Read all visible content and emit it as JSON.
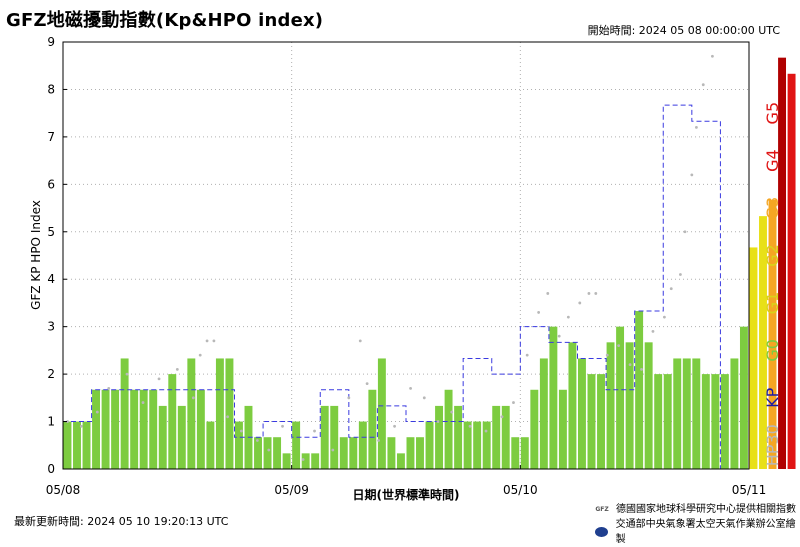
{
  "title": "GFZ地磁擾動指數(Kp&HPO index)",
  "start_time": "開始時間:  2024 05 08 00:00:00 UTC",
  "last_updated": "最新更新時間:  2024 05 10 19:20:13 UTC",
  "credits": {
    "gfz_logo_text": "GFZ",
    "line1": "德國國家地球科學研究中心提供相關指數",
    "line2": "交通部中央氣象署太空天氣作業辦公室繪製"
  },
  "colors": {
    "G0": "#7dcc40",
    "G1": "#e8e017",
    "G2": "#e8e017",
    "G3": "#f5a623",
    "G4": "#e01414",
    "G5": "#b00000",
    "kp_line": "#3a3ae0",
    "hp30": "#b8b8b8"
  },
  "chart_data": {
    "type": "bar",
    "title": "GFZ地磁擾動指數(Kp&HPO index)",
    "xlabel": "日期(世界標準時間)",
    "ylabel": "GFZ KP HPO Index",
    "ylim": [
      0,
      9
    ],
    "yticks": [
      "0",
      "1",
      "2",
      "3",
      "4",
      "5",
      "6",
      "7",
      "8",
      "9"
    ],
    "xlim_days": [
      0,
      3
    ],
    "xticks": [
      "05/08",
      "05/09",
      "05/10",
      "05/11"
    ],
    "grid": true,
    "right_axis_labels": [
      {
        "text": "HP30",
        "color": "#b8b8b8"
      },
      {
        "text": "KP",
        "color": "#1a1aa8"
      },
      {
        "text": "G0",
        "color": "#7dcc40"
      },
      {
        "text": "G1",
        "color": "#d9d21a"
      },
      {
        "text": "G2",
        "color": "#d9d21a"
      },
      {
        "text": "G3",
        "color": "#f5a623"
      },
      {
        "text": "G4",
        "color": "#e01414"
      },
      {
        "text": "G5",
        "color": "#e01414"
      }
    ],
    "hpo_hourly": [
      1.0,
      1.0,
      1.0,
      1.67,
      1.67,
      1.67,
      2.33,
      1.67,
      1.67,
      1.67,
      1.33,
      2.0,
      1.33,
      2.33,
      1.67,
      1.0,
      2.33,
      2.33,
      1.0,
      1.33,
      0.67,
      0.67,
      0.67,
      0.33,
      1.0,
      0.33,
      0.33,
      1.33,
      1.33,
      0.67,
      0.67,
      1.0,
      1.67,
      2.33,
      0.67,
      0.33,
      0.67,
      0.67,
      1.0,
      1.33,
      1.67,
      1.33,
      1.0,
      1.0,
      1.0,
      1.33,
      1.33,
      0.67,
      0.67,
      1.67,
      2.33,
      3.0,
      1.67,
      2.67,
      2.33,
      2.0,
      2.0,
      2.67,
      3.0,
      2.67,
      3.33,
      2.67,
      2.0,
      2.0,
      2.33,
      2.33,
      2.33,
      2.0,
      2.0,
      2.0,
      2.33,
      3.0,
      4.67,
      5.33,
      5.67,
      8.67,
      8.33
    ],
    "kp_3h": [
      1.0,
      1.67,
      1.67,
      1.67,
      1.67,
      1.67,
      0.67,
      1.0,
      0.67,
      1.67,
      0.67,
      1.33,
      1.0,
      1.0,
      2.33,
      2.0,
      3.0,
      2.67,
      2.33,
      1.67,
      3.33,
      7.67,
      7.33
    ],
    "hp30_points": [
      [
        0.02,
        1.0
      ],
      [
        0.08,
        0.9
      ],
      [
        0.15,
        1.2
      ],
      [
        0.2,
        1.7
      ],
      [
        0.28,
        2.0
      ],
      [
        0.35,
        1.4
      ],
      [
        0.42,
        1.9
      ],
      [
        0.5,
        2.1
      ],
      [
        0.57,
        1.5
      ],
      [
        0.6,
        2.4
      ],
      [
        0.63,
        2.7
      ],
      [
        0.66,
        2.7
      ],
      [
        0.72,
        1.1
      ],
      [
        0.78,
        0.8
      ],
      [
        0.85,
        0.6
      ],
      [
        0.9,
        0.4
      ],
      [
        0.96,
        0.9
      ],
      [
        1.05,
        0.2
      ],
      [
        1.1,
        0.8
      ],
      [
        1.18,
        0.4
      ],
      [
        1.25,
        1.5
      ],
      [
        1.3,
        2.7
      ],
      [
        1.33,
        1.8
      ],
      [
        1.38,
        0.6
      ],
      [
        1.45,
        0.9
      ],
      [
        1.52,
        1.7
      ],
      [
        1.58,
        1.5
      ],
      [
        1.64,
        1.0
      ],
      [
        1.7,
        1.2
      ],
      [
        1.78,
        0.9
      ],
      [
        1.85,
        0.8
      ],
      [
        1.92,
        1.1
      ],
      [
        1.97,
        1.4
      ],
      [
        2.03,
        2.4
      ],
      [
        2.08,
        3.3
      ],
      [
        2.12,
        3.7
      ],
      [
        2.17,
        2.8
      ],
      [
        2.21,
        3.2
      ],
      [
        2.26,
        3.5
      ],
      [
        2.3,
        3.7
      ],
      [
        2.33,
        3.7
      ],
      [
        2.38,
        2.4
      ],
      [
        2.43,
        2.6
      ],
      [
        2.48,
        2.2
      ],
      [
        2.53,
        2.1
      ],
      [
        2.58,
        2.9
      ],
      [
        2.63,
        3.2
      ],
      [
        2.66,
        3.8
      ],
      [
        2.7,
        4.1
      ],
      [
        2.72,
        5.0
      ],
      [
        2.75,
        6.2
      ],
      [
        2.77,
        7.2
      ],
      [
        2.8,
        8.1
      ],
      [
        2.84,
        8.7
      ]
    ]
  }
}
